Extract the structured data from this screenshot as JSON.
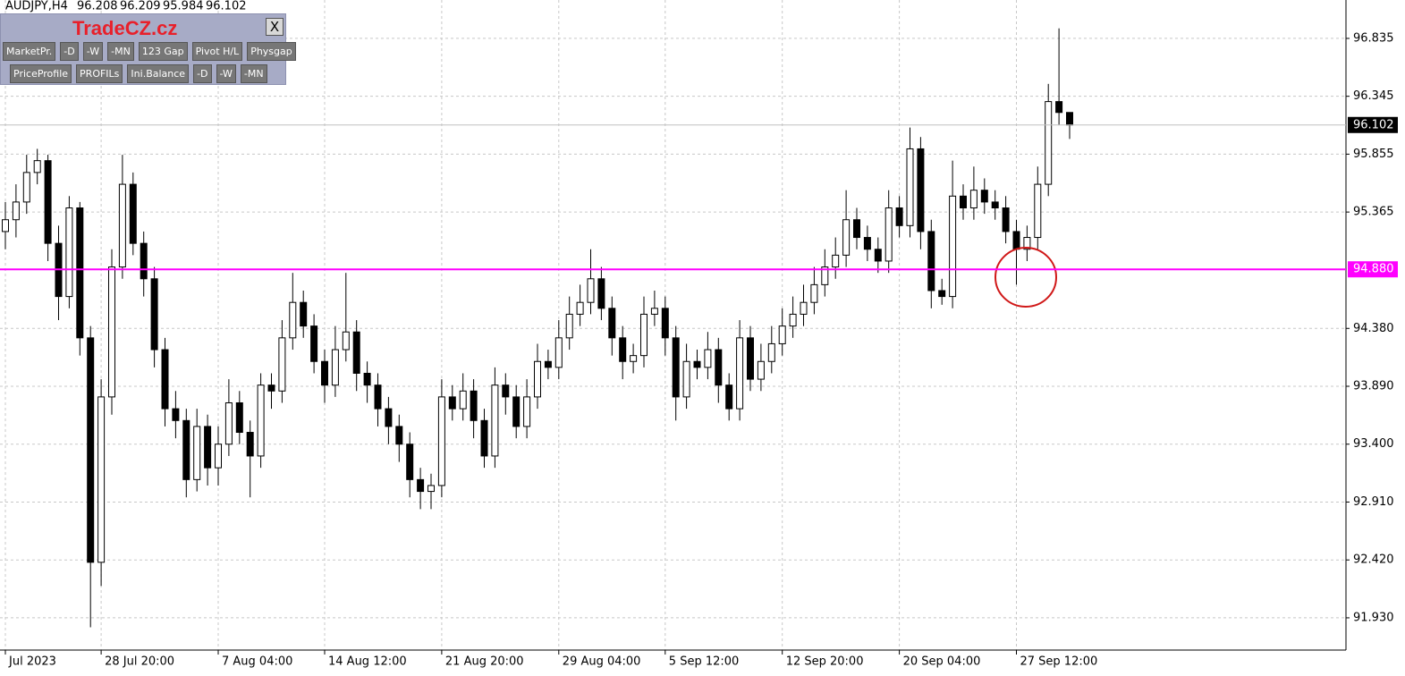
{
  "chart_data": {
    "type": "candlestick",
    "symbol": "AUDJPY,H4",
    "categories": [
      "Jul 2023",
      null,
      null,
      null,
      null,
      null,
      null,
      null,
      null,
      "28 Jul 20:00",
      null,
      null,
      null,
      null,
      null,
      null,
      null,
      null,
      null,
      null,
      "7 Aug 04:00",
      null,
      null,
      null,
      null,
      null,
      null,
      null,
      null,
      null,
      "14 Aug 12:00",
      null,
      null,
      null,
      null,
      null,
      null,
      null,
      null,
      null,
      null,
      "21 Aug 20:00",
      null,
      null,
      null,
      null,
      null,
      null,
      null,
      null,
      null,
      null,
      "29 Aug 04:00",
      null,
      null,
      null,
      null,
      null,
      null,
      null,
      null,
      null,
      "5 Sep 12:00",
      null,
      null,
      null,
      null,
      null,
      null,
      null,
      null,
      null,
      null,
      "12 Sep 20:00",
      null,
      null,
      null,
      null,
      null,
      null,
      null,
      null,
      null,
      null,
      "20 Sep 04:00",
      null,
      null,
      null,
      null,
      null,
      null,
      null,
      null,
      null,
      null,
      "27 Sep 12:00",
      null,
      null,
      null,
      null,
      null
    ],
    "open": [
      95.2,
      95.3,
      95.45,
      95.7,
      95.8,
      95.1,
      94.65,
      95.4,
      94.3,
      92.4,
      93.8,
      94.9,
      95.6,
      95.1,
      94.8,
      94.2,
      93.7,
      93.6,
      93.1,
      93.55,
      93.2,
      93.4,
      93.75,
      93.5,
      93.3,
      93.9,
      93.85,
      94.3,
      94.6,
      94.4,
      94.1,
      93.9,
      94.2,
      94.35,
      94.0,
      93.9,
      93.7,
      93.55,
      93.4,
      93.1,
      93.0,
      93.05,
      93.8,
      93.7,
      93.85,
      93.6,
      93.3,
      93.9,
      93.8,
      93.55,
      93.8,
      94.1,
      94.05,
      94.3,
      94.5,
      94.6,
      94.8,
      94.55,
      94.3,
      94.1,
      94.15,
      94.5,
      94.55,
      94.3,
      93.8,
      94.1,
      94.05,
      94.2,
      93.9,
      93.7,
      94.3,
      93.95,
      94.1,
      94.25,
      94.4,
      94.5,
      94.6,
      94.75,
      94.9,
      95.0,
      95.3,
      95.15,
      95.05,
      94.95,
      95.4,
      95.25,
      95.9,
      95.2,
      94.7,
      94.65,
      95.5,
      95.4,
      95.55,
      95.45,
      95.4,
      95.2,
      95.05,
      95.15,
      95.6,
      96.3,
      96.208
    ],
    "high": [
      95.45,
      95.6,
      95.85,
      95.9,
      95.85,
      95.25,
      95.5,
      95.45,
      94.4,
      93.95,
      95.05,
      95.85,
      95.7,
      95.2,
      94.9,
      94.3,
      93.85,
      93.7,
      93.7,
      93.65,
      93.55,
      93.95,
      93.85,
      93.6,
      94.0,
      94.0,
      94.45,
      94.85,
      94.7,
      94.5,
      94.2,
      94.4,
      94.85,
      94.45,
      94.1,
      94.0,
      93.8,
      93.65,
      93.5,
      93.2,
      93.15,
      93.95,
      93.9,
      94.0,
      93.95,
      93.7,
      94.05,
      94.0,
      93.9,
      93.95,
      94.25,
      94.2,
      94.45,
      94.65,
      94.75,
      95.05,
      94.9,
      94.65,
      94.4,
      94.25,
      94.65,
      94.7,
      94.65,
      94.4,
      94.25,
      94.2,
      94.35,
      94.3,
      94.0,
      94.45,
      94.4,
      94.25,
      94.4,
      94.55,
      94.65,
      94.75,
      94.9,
      95.05,
      95.15,
      95.55,
      95.4,
      95.25,
      95.15,
      95.55,
      95.5,
      96.08,
      96.0,
      95.3,
      94.8,
      95.8,
      95.6,
      95.75,
      95.65,
      95.55,
      95.5,
      95.3,
      95.25,
      95.75,
      96.45,
      96.92,
      96.209
    ],
    "low": [
      95.05,
      95.15,
      95.35,
      95.6,
      94.95,
      94.45,
      94.55,
      94.15,
      91.85,
      92.2,
      93.65,
      94.8,
      95.0,
      94.65,
      94.05,
      93.55,
      93.45,
      92.95,
      93.0,
      93.05,
      93.05,
      93.3,
      93.4,
      92.95,
      93.2,
      93.7,
      93.75,
      94.2,
      94.3,
      94.0,
      93.75,
      93.8,
      94.1,
      93.85,
      93.75,
      93.55,
      93.4,
      93.25,
      92.95,
      92.85,
      92.85,
      92.95,
      93.6,
      93.6,
      93.45,
      93.2,
      93.2,
      93.65,
      93.45,
      93.45,
      93.7,
      93.95,
      93.95,
      94.2,
      94.4,
      94.5,
      94.45,
      94.15,
      93.95,
      94.0,
      94.05,
      94.4,
      94.15,
      93.6,
      93.7,
      93.95,
      93.95,
      93.75,
      93.6,
      93.6,
      93.85,
      93.85,
      94.0,
      94.15,
      94.3,
      94.4,
      94.5,
      94.65,
      94.8,
      94.9,
      95.05,
      94.95,
      94.85,
      94.85,
      95.15,
      95.15,
      95.05,
      94.55,
      94.58,
      94.55,
      95.3,
      95.3,
      95.35,
      95.3,
      95.1,
      94.75,
      94.95,
      95.05,
      95.5,
      96.1,
      95.984
    ],
    "close": [
      95.3,
      95.45,
      95.7,
      95.8,
      95.1,
      94.65,
      95.4,
      94.3,
      92.4,
      93.8,
      94.9,
      95.6,
      95.1,
      94.8,
      94.2,
      93.7,
      93.6,
      93.1,
      93.55,
      93.2,
      93.4,
      93.75,
      93.5,
      93.3,
      93.9,
      93.85,
      94.3,
      94.6,
      94.4,
      94.1,
      93.9,
      94.2,
      94.35,
      94.0,
      93.9,
      93.7,
      93.55,
      93.4,
      93.1,
      93.0,
      93.05,
      93.8,
      93.7,
      93.85,
      93.6,
      93.3,
      93.9,
      93.8,
      93.55,
      93.8,
      94.1,
      94.05,
      94.3,
      94.5,
      94.6,
      94.8,
      94.55,
      94.3,
      94.1,
      94.15,
      94.5,
      94.55,
      94.3,
      93.8,
      94.1,
      94.05,
      94.2,
      93.9,
      93.7,
      94.3,
      93.95,
      94.1,
      94.25,
      94.4,
      94.5,
      94.6,
      94.75,
      94.9,
      95.0,
      95.3,
      95.15,
      95.05,
      94.95,
      95.4,
      95.25,
      95.9,
      95.2,
      94.7,
      94.65,
      95.5,
      95.4,
      95.55,
      95.45,
      95.4,
      95.2,
      95.05,
      95.15,
      95.6,
      96.3,
      96.208,
      96.102
    ],
    "ylim": [
      91.657,
      97.16
    ],
    "yticks": [
      96.835,
      96.345,
      95.855,
      95.365,
      {
        "value": 94.38,
        "label": "94.380"
      },
      {
        "value": 93.89,
        "label": "93.890"
      },
      {
        "value": 93.4,
        "label": "93.400"
      },
      {
        "value": 92.91,
        "label": "92.910"
      },
      {
        "value": 92.42,
        "label": "92.420"
      },
      {
        "value": 91.93,
        "label": "91.930"
      }
    ],
    "grid": true,
    "bull_color": "#ffffff",
    "bear_color": "#000000",
    "outline_color": "#000000",
    "hline": {
      "value": 94.88,
      "label": "94.880",
      "color": "#ff00ff"
    }
  },
  "panel": {
    "title": "TradeCZ.cz",
    "close": "X",
    "row1": [
      "MarketPr.",
      "-D",
      "-W",
      "-MN",
      "123 Gap",
      "Pivot H/L",
      "Physgap"
    ],
    "row2": [
      "PriceProfile",
      "PROFILs",
      "Ini.Balance",
      "-D",
      "-W",
      "-MN"
    ]
  }
}
